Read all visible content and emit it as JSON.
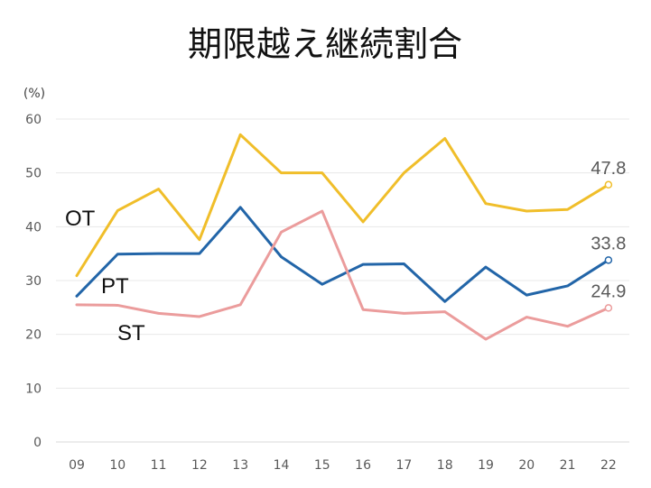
{
  "chart_data": {
    "type": "line",
    "title": "期限越え継続割合",
    "ylabel": "(%)",
    "xlabel": "",
    "categories": [
      "09",
      "10",
      "11",
      "12",
      "13",
      "14",
      "15",
      "16",
      "17",
      "18",
      "19",
      "20",
      "21",
      "22"
    ],
    "ylim": [
      0,
      60
    ],
    "yticks": [
      0,
      10,
      20,
      30,
      40,
      50,
      60
    ],
    "grid": true,
    "legend": "none",
    "series": [
      {
        "name": "OT",
        "color": "#F0BE2A",
        "values": [
          30.9,
          43.0,
          47.0,
          37.6,
          57.1,
          50.0,
          50.0,
          40.9,
          50.0,
          56.4,
          44.3,
          42.9,
          43.2,
          47.8
        ],
        "end_label": "47.8"
      },
      {
        "name": "PT",
        "color": "#2265A8",
        "values": [
          27.1,
          34.9,
          35.0,
          35.0,
          43.6,
          34.4,
          29.3,
          33.0,
          33.1,
          26.1,
          32.5,
          27.3,
          29.0,
          33.8
        ],
        "end_label": "33.8"
      },
      {
        "name": "ST",
        "color": "#EB9C9C",
        "values": [
          25.5,
          25.4,
          23.9,
          23.3,
          25.5,
          39.0,
          42.9,
          24.6,
          23.9,
          24.2,
          19.1,
          23.2,
          21.5,
          24.9
        ],
        "end_label": "24.9"
      }
    ]
  }
}
